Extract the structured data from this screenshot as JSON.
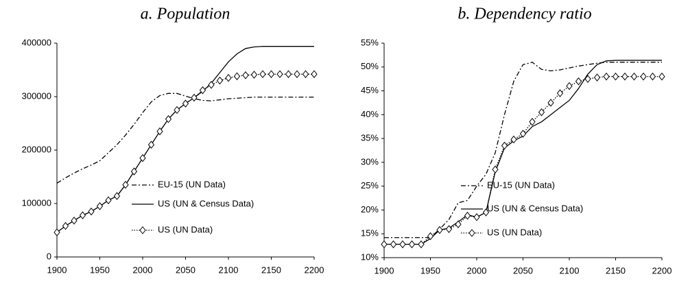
{
  "chart_data": [
    {
      "type": "line",
      "title": "a. Population",
      "x": [
        1900,
        1910,
        1920,
        1930,
        1940,
        1950,
        1960,
        1970,
        1980,
        1990,
        2000,
        2010,
        2020,
        2030,
        2040,
        2050,
        2060,
        2070,
        2080,
        2090,
        2100,
        2110,
        2120,
        2130,
        2140,
        2150,
        2160,
        2170,
        2180,
        2190,
        2200
      ],
      "xlim": [
        1900,
        2200
      ],
      "xticks": [
        1900,
        1950,
        2000,
        2050,
        2100,
        2150,
        2200
      ],
      "ylim": [
        0,
        400000
      ],
      "yticks": [
        0,
        100000,
        200000,
        300000,
        400000
      ],
      "series": [
        {
          "name": "EU-15 (UN Data)",
          "color": "#000000",
          "line_style": "dashdot",
          "marker": "none",
          "values": [
            138000,
            148000,
            157000,
            165000,
            172000,
            180000,
            195000,
            210000,
            228000,
            248000,
            270000,
            290000,
            302000,
            306000,
            306000,
            301000,
            296000,
            293000,
            292000,
            294000,
            296000,
            297000,
            298000,
            299000,
            299000,
            299000,
            299000,
            299000,
            299000,
            299000,
            299000
          ]
        },
        {
          "name": "US (UN & Census Data)",
          "color": "#000000",
          "line_style": "solid",
          "marker": "none",
          "values": [
            46000,
            58000,
            68000,
            78000,
            85000,
            95000,
            106000,
            114000,
            135000,
            160000,
            185000,
            210000,
            235000,
            258000,
            275000,
            287000,
            298000,
            310000,
            325000,
            345000,
            365000,
            380000,
            390000,
            393000,
            394000,
            394000,
            394000,
            394000,
            394000,
            394000,
            394000
          ]
        },
        {
          "name": "US (UN Data)",
          "color": "#000000",
          "line_style": "dotted",
          "marker": "diamond",
          "values": [
            46000,
            58000,
            68000,
            78000,
            85000,
            95000,
            106000,
            114000,
            135000,
            160000,
            185000,
            210000,
            235000,
            258000,
            275000,
            287000,
            298000,
            312000,
            322000,
            330000,
            335000,
            338000,
            340000,
            341000,
            342000,
            342000,
            342000,
            342000,
            342000,
            342000,
            342000
          ]
        }
      ]
    },
    {
      "type": "line",
      "title": "b. Dependency ratio",
      "x": [
        1900,
        1910,
        1920,
        1930,
        1940,
        1950,
        1960,
        1970,
        1980,
        1990,
        2000,
        2010,
        2020,
        2030,
        2040,
        2050,
        2060,
        2070,
        2080,
        2090,
        2100,
        2110,
        2120,
        2130,
        2140,
        2150,
        2160,
        2170,
        2180,
        2190,
        2200
      ],
      "xlim": [
        1900,
        2200
      ],
      "xticks": [
        1900,
        1950,
        2000,
        2050,
        2100,
        2150,
        2200
      ],
      "ylim": [
        10,
        55
      ],
      "yticks": [
        {
          "value": 10,
          "label": "10%"
        },
        {
          "value": 15,
          "label": "15%"
        },
        {
          "value": 20,
          "label": "20%"
        },
        {
          "value": 25,
          "label": "25%"
        },
        {
          "value": 30,
          "label": "30%"
        },
        {
          "value": 35,
          "label": "35%"
        },
        {
          "value": 40,
          "label": "40%"
        },
        {
          "value": 45,
          "label": "45%"
        },
        {
          "value": 50,
          "label": "50%"
        },
        {
          "value": 55,
          "label": "55%"
        }
      ],
      "series": [
        {
          "name": "EU-15 (UN Data)",
          "color": "#000000",
          "line_style": "dashdot",
          "marker": "none",
          "values": [
            14.2,
            14.2,
            14.2,
            14.2,
            14.2,
            14.2,
            16,
            18,
            21.5,
            22,
            25,
            27.5,
            32,
            40,
            47,
            50.5,
            51,
            49.5,
            49.2,
            49.4,
            49.8,
            50.2,
            50.5,
            50.8,
            51,
            51,
            51,
            51,
            51,
            51,
            51
          ]
        },
        {
          "name": "US (UN & Census Data)",
          "color": "#000000",
          "line_style": "solid",
          "marker": "none",
          "values": [
            12.8,
            12.8,
            12.8,
            12.8,
            12.8,
            14,
            15.8,
            16.2,
            17.5,
            19,
            18.5,
            19.5,
            28,
            33,
            34.5,
            35.5,
            37.5,
            38.5,
            40,
            41.5,
            43,
            45.5,
            48.5,
            50.5,
            51.3,
            51.4,
            51.4,
            51.4,
            51.4,
            51.4,
            51.4
          ]
        },
        {
          "name": "US (UN Data)",
          "color": "#000000",
          "line_style": "dotted",
          "marker": "diamond",
          "values": [
            12.8,
            12.8,
            12.8,
            12.8,
            12.8,
            14.5,
            15.8,
            16,
            17,
            18.8,
            18.5,
            19.5,
            28.5,
            33.5,
            34.8,
            36,
            38.5,
            40.5,
            42.5,
            44.5,
            46,
            47,
            47.5,
            47.8,
            48,
            48,
            48,
            48,
            48,
            48,
            48
          ]
        }
      ]
    }
  ]
}
